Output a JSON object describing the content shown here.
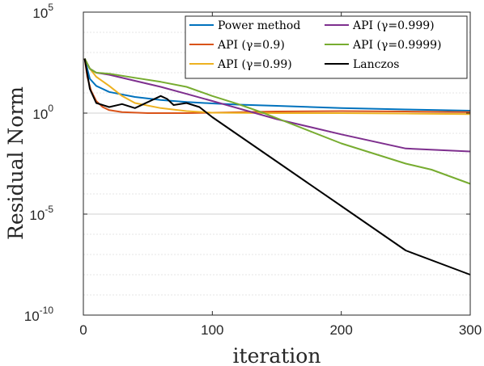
{
  "chart_data": {
    "type": "line",
    "xlabel": "iteration",
    "ylabel": "Residual Norm",
    "xlim": [
      0,
      300
    ],
    "ylim_log10": [
      -10,
      5
    ],
    "y_scale": "log",
    "grid": "y-major-and-minor",
    "legend_placement": "top-right",
    "x_ticks": [
      0,
      100,
      200,
      300
    ],
    "x_tick_labels": [
      "0",
      "100",
      "200",
      "300"
    ],
    "y_ticks": [
      -10,
      -5,
      0,
      5
    ],
    "y_tick_base": "10",
    "y_tick_exponents": [
      "-10",
      "-5",
      "0",
      "5"
    ],
    "series": [
      {
        "name": "Power method",
        "color": "#0072BD",
        "x": [
          1,
          5,
          10,
          20,
          40,
          60,
          80,
          100,
          120,
          150,
          200,
          250,
          300
        ],
        "log10_y": [
          2.7,
          1.7,
          1.35,
          1.05,
          0.8,
          0.65,
          0.55,
          0.48,
          0.42,
          0.36,
          0.25,
          0.18,
          0.12
        ]
      },
      {
        "name": "API (γ=0.9)",
        "color": "#D95319",
        "x": [
          1,
          3,
          6,
          10,
          15,
          20,
          30,
          50,
          80,
          100,
          150,
          200,
          250,
          300
        ],
        "log10_y": [
          2.7,
          1.8,
          1.1,
          0.6,
          0.3,
          0.15,
          0.05,
          0.0,
          0.0,
          0.02,
          0.08,
          0.1,
          0.08,
          0.05
        ]
      },
      {
        "name": "API (γ=0.99)",
        "color": "#EDB120",
        "x": [
          1,
          5,
          10,
          20,
          30,
          40,
          60,
          80,
          100,
          150,
          200,
          250,
          300
        ],
        "log10_y": [
          2.7,
          2.2,
          1.8,
          1.35,
          0.85,
          0.5,
          0.25,
          0.1,
          0.02,
          0.0,
          0.0,
          -0.02,
          -0.05
        ]
      },
      {
        "name": "API (γ=0.999)",
        "color": "#7E2F8E",
        "x": [
          1,
          5,
          10,
          20,
          40,
          60,
          80,
          100,
          150,
          200,
          250,
          300
        ],
        "log10_y": [
          2.7,
          2.2,
          2.0,
          1.9,
          1.6,
          1.3,
          0.95,
          0.6,
          -0.3,
          -1.05,
          -1.75,
          -1.9
        ]
      },
      {
        "name": "API (γ=0.9999)",
        "color": "#77AC30",
        "x": [
          1,
          5,
          10,
          20,
          40,
          60,
          80,
          100,
          120,
          140,
          160,
          200,
          250,
          270,
          300
        ],
        "log10_y": [
          2.7,
          2.2,
          2.0,
          1.95,
          1.75,
          1.55,
          1.3,
          0.85,
          0.45,
          0.0,
          -0.5,
          -1.5,
          -2.5,
          -2.8,
          -3.5
        ]
      },
      {
        "name": "Lanczos",
        "color": "#000000",
        "x": [
          1,
          5,
          10,
          20,
          30,
          40,
          50,
          60,
          65,
          70,
          80,
          90,
          100,
          150,
          200,
          250,
          300
        ],
        "log10_y": [
          2.7,
          1.2,
          0.5,
          0.3,
          0.45,
          0.25,
          0.55,
          0.85,
          0.7,
          0.4,
          0.5,
          0.3,
          -0.2,
          -2.4,
          -4.6,
          -6.8,
          -8.0
        ]
      }
    ]
  }
}
